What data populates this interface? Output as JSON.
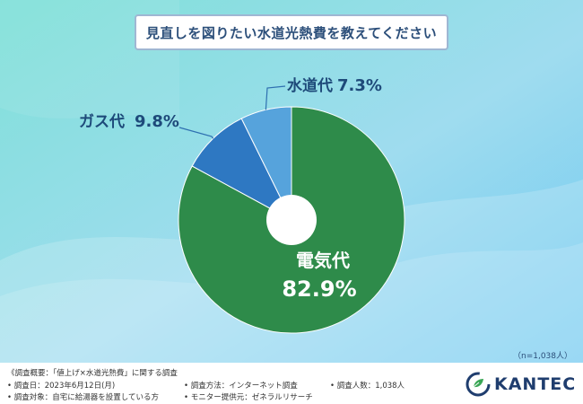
{
  "title": "見直しを図りたい水道光熱費を教えてください",
  "sample_size": "（n=1,038人）",
  "colors": {
    "electricity": "#2e8b4a",
    "gas": "#2e78c2",
    "water": "#56a3dc",
    "label_gas_water": "#1e4a7a",
    "label_electricity": "#ffffff"
  },
  "chart_data": {
    "type": "pie",
    "title": "見直しを図りたい水道光熱費を教えてください",
    "slices": [
      {
        "label": "電気代",
        "value": 82.9,
        "display": "82.9%"
      },
      {
        "label": "ガス代",
        "value": 9.8,
        "display": "9.8%"
      },
      {
        "label": "水道代",
        "value": 7.3,
        "display": "7.3%"
      }
    ]
  },
  "footer": {
    "survey_title": "《調査概要：「値上げ×水道光熱費」に関する調査",
    "survey_date": "• 調査日：2023年6月12日(月)",
    "survey_target": "• 調査対象：自宅に給湯器を設置している方",
    "survey_method": "• 調査方法：インターネット調査",
    "monitor_provider": "• モニター提供元：ゼネラルリサーチ",
    "respondents": "• 調査人数：1,038人",
    "logo_text": "KANTEC",
    "logo_icon": "kantec-leaf-icon"
  }
}
